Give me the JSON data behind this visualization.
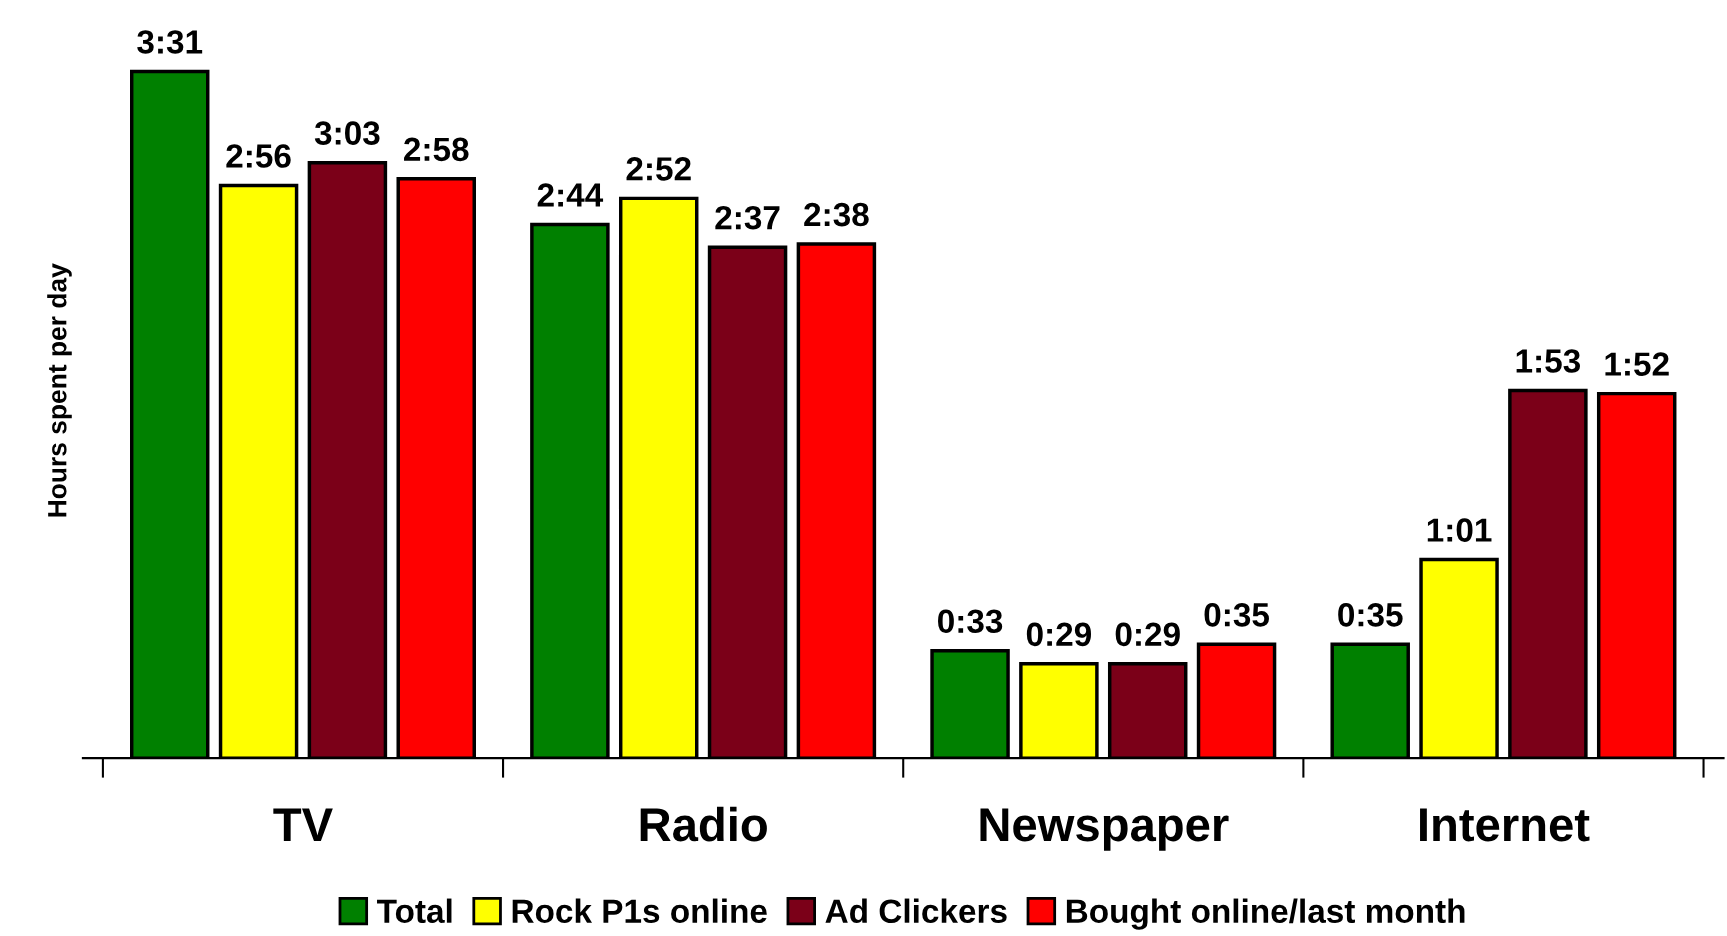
{
  "chart_data": {
    "type": "bar",
    "ylabel": "Hours spent per day",
    "categories": [
      "TV",
      "Radio",
      "Newspaper",
      "Internet"
    ],
    "grid": false,
    "legend": "bottom",
    "tick_labels": "x",
    "series": [
      {
        "name": "Total",
        "color": "#008000",
        "values": [
          3.517,
          2.733,
          0.55,
          0.583
        ],
        "value_labels": [
          "3:31",
          "2:44",
          "0:33",
          "0:35"
        ]
      },
      {
        "name": "Rock P1s online",
        "color": "#ffff00",
        "values": [
          2.933,
          2.867,
          0.483,
          1.017
        ],
        "value_labels": [
          "2:56",
          "2:52",
          "0:29",
          "1:01"
        ]
      },
      {
        "name": "Ad Clickers",
        "color": "#7b0018",
        "values": [
          3.05,
          2.617,
          0.483,
          1.883
        ],
        "value_labels": [
          "3:03",
          "2:37",
          "0:29",
          "1:53"
        ]
      },
      {
        "name": "Bought online/last month",
        "color": "#ff0000",
        "values": [
          2.967,
          2.633,
          0.583,
          1.867
        ],
        "value_labels": [
          "2:58",
          "2:38",
          "0:35",
          "1:52"
        ]
      }
    ]
  }
}
